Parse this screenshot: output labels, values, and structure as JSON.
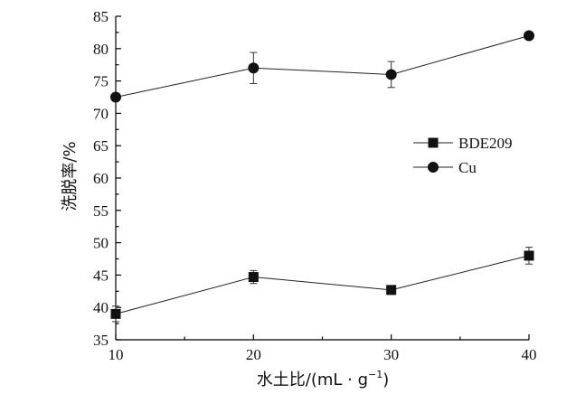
{
  "chart_data": {
    "type": "line",
    "xlabel": "水土比/(mL · g",
    "xlabel_sup": "−1",
    "xlabel_end": ")",
    "ylabel": "洗脱率/%",
    "x": [
      10,
      20,
      30,
      40
    ],
    "xlim": [
      10,
      40
    ],
    "ylim": [
      35,
      85
    ],
    "xticks": [
      "10",
      "20",
      "30",
      "40"
    ],
    "yticks": [
      "35",
      "40",
      "45",
      "50",
      "55",
      "60",
      "65",
      "70",
      "75",
      "80",
      "85"
    ],
    "grid": false,
    "legend_position": "right-middle",
    "series": [
      {
        "name": "BDE209",
        "marker": "square",
        "color": "#111111",
        "values": [
          39.0,
          44.7,
          42.7,
          48.0
        ],
        "errors": [
          1.2,
          1.0,
          0.4,
          1.3
        ]
      },
      {
        "name": "Cu",
        "marker": "circle",
        "color": "#111111",
        "values": [
          72.5,
          77.0,
          76.0,
          82.0
        ],
        "errors": [
          0.4,
          2.4,
          2.0,
          0.4
        ]
      }
    ]
  }
}
